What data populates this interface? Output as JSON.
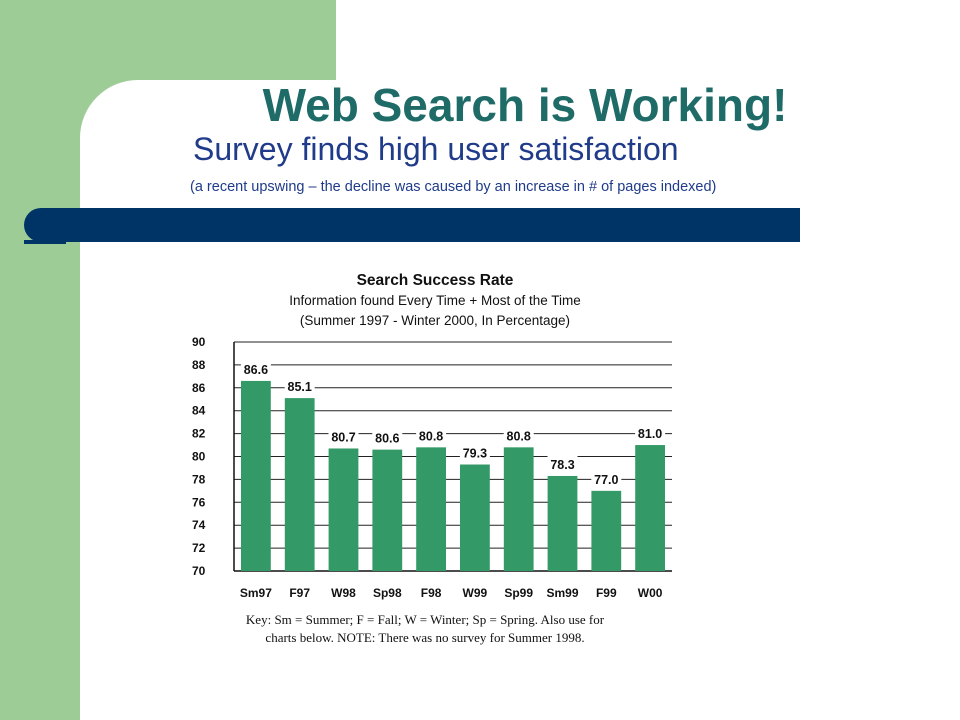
{
  "slide": {
    "title": "Web Search is Working!",
    "subtitle": "Survey finds high user satisfaction",
    "note": "(a recent upswing – the decline was caused by an increase in # of pages indexed)",
    "colors": {
      "side_panel": "#9dcc96",
      "banner": "#003366",
      "title": "#1f6b67",
      "subtitle": "#1f3b8a"
    }
  },
  "chart_data": {
    "type": "bar",
    "title": "Search Success Rate",
    "subtitle_lines": [
      "Information found Every Time + Most of the Time",
      "(Summer 1997 - Winter 2000, In Percentage)"
    ],
    "categories": [
      "Sm97",
      "F97",
      "W98",
      "Sp98",
      "F98",
      "W99",
      "Sp99",
      "Sm99",
      "F99",
      "W00"
    ],
    "values": [
      86.6,
      85.1,
      80.7,
      80.6,
      80.8,
      79.3,
      80.8,
      78.3,
      77.0,
      81.0
    ],
    "value_labels": [
      "86.6",
      "85.1",
      "80.7",
      "80.6",
      "80.8",
      "79.3",
      "80.8",
      "78.3",
      "77.0",
      "81.0"
    ],
    "ylim": [
      70,
      90
    ],
    "yticks": [
      "70",
      "72",
      "74",
      "76",
      "78",
      "80",
      "82",
      "84",
      "86",
      "88",
      "90"
    ],
    "grid": true,
    "bar_color": "#339966",
    "key_lines": [
      "Key: Sm = Summer; F = Fall; W = Winter; Sp = Spring. Also use for",
      "charts below. NOTE: There was no survey for Summer 1998."
    ]
  }
}
